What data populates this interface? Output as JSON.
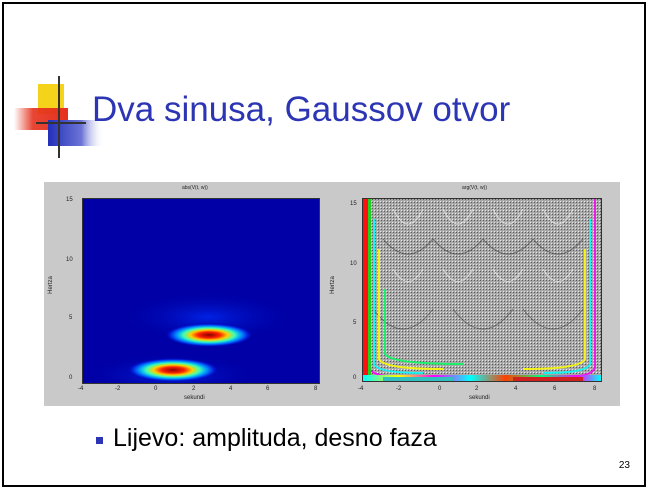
{
  "slide": {
    "title": "Dva sinusa, Gaussov otvor",
    "bullet": "Lijevo: amplituda, desno faza",
    "page_number": "23"
  },
  "figure": {
    "left_panel": {
      "title": "abs(V(t, w))",
      "xlabel": "sekundi",
      "ylabel": "Hertza",
      "xticks": [
        "-4",
        "-2",
        "0",
        "2",
        "4",
        "6",
        "8"
      ],
      "yticks": [
        "15",
        "10",
        "5",
        "0"
      ]
    },
    "right_panel": {
      "title": "arg(V(t, w))",
      "xlabel": "sekundi",
      "ylabel": "Hertza",
      "xticks": [
        "-4",
        "-2",
        "0",
        "2",
        "4",
        "6",
        "8"
      ],
      "yticks": [
        "15",
        "10",
        "5",
        "0"
      ]
    }
  },
  "colors": {
    "title": "#2c35b3",
    "bullet": "#2c35b3",
    "logo_yellow": "#f5d31a",
    "logo_red": "#e5311d",
    "logo_blue": "#2330b9"
  }
}
